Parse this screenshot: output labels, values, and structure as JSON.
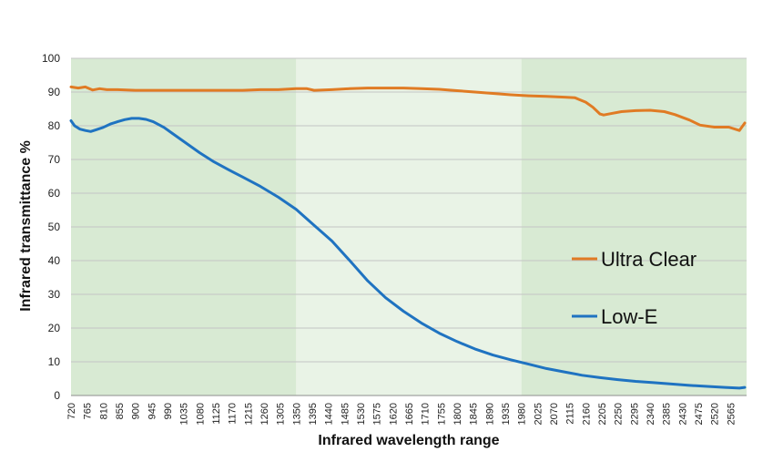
{
  "chart_data": {
    "type": "line",
    "xlabel": "Infrared wavelength range",
    "ylabel": "Infrared transmittance %",
    "xlim": [
      720,
      2610
    ],
    "ylim": [
      0,
      100
    ],
    "y_ticks": [
      0,
      10,
      20,
      30,
      40,
      50,
      60,
      70,
      80,
      90,
      100
    ],
    "x_ticks": [
      720,
      765,
      810,
      855,
      900,
      945,
      990,
      1035,
      1080,
      1125,
      1170,
      1215,
      1260,
      1305,
      1350,
      1395,
      1440,
      1485,
      1530,
      1575,
      1620,
      1665,
      1710,
      1755,
      1800,
      1845,
      1890,
      1935,
      1980,
      2025,
      2070,
      2115,
      2160,
      2205,
      2250,
      2295,
      2340,
      2385,
      2430,
      2475,
      2520,
      2565
    ],
    "bands": [
      {
        "from": 720,
        "to": 1350,
        "color": "#d8ead3"
      },
      {
        "from": 1350,
        "to": 1980,
        "color": "#e9f3e6"
      },
      {
        "from": 1980,
        "to": 2610,
        "color": "#d8ead3"
      }
    ],
    "grid": "horizontal",
    "legend_position": "right",
    "series": [
      {
        "name": "Ultra Clear",
        "color": "#e07b24",
        "x": [
          720,
          740,
          760,
          780,
          800,
          820,
          850,
          900,
          1000,
          1100,
          1200,
          1250,
          1300,
          1350,
          1380,
          1400,
          1450,
          1500,
          1550,
          1600,
          1650,
          1700,
          1750,
          1800,
          1850,
          1900,
          1950,
          2000,
          2050,
          2100,
          2130,
          2160,
          2180,
          2200,
          2210,
          2230,
          2260,
          2300,
          2340,
          2380,
          2410,
          2450,
          2480,
          2520,
          2560,
          2590,
          2605
        ],
        "y": [
          91.5,
          91.2,
          91.5,
          90.6,
          91.0,
          90.7,
          90.7,
          90.5,
          90.5,
          90.5,
          90.5,
          90.7,
          90.7,
          91.0,
          91.0,
          90.5,
          90.7,
          91.0,
          91.2,
          91.2,
          91.2,
          91.0,
          90.8,
          90.4,
          90.0,
          89.6,
          89.2,
          88.9,
          88.7,
          88.5,
          88.3,
          87.0,
          85.5,
          83.5,
          83.2,
          83.6,
          84.2,
          84.5,
          84.6,
          84.2,
          83.3,
          81.7,
          80.2,
          79.6,
          79.6,
          78.6,
          80.8
        ]
      },
      {
        "name": "Low-E",
        "color": "#1f73c1",
        "x": [
          720,
          730,
          745,
          760,
          775,
          790,
          810,
          830,
          850,
          870,
          890,
          910,
          930,
          950,
          980,
          1000,
          1040,
          1080,
          1120,
          1160,
          1200,
          1250,
          1300,
          1350,
          1400,
          1450,
          1500,
          1550,
          1600,
          1650,
          1700,
          1750,
          1800,
          1850,
          1900,
          1950,
          2000,
          2050,
          2100,
          2150,
          2200,
          2250,
          2300,
          2350,
          2400,
          2450,
          2500,
          2550,
          2590,
          2605
        ],
        "y": [
          81.5,
          80.0,
          79.0,
          78.6,
          78.3,
          78.8,
          79.5,
          80.5,
          81.2,
          81.8,
          82.2,
          82.2,
          81.9,
          81.2,
          79.5,
          78.0,
          75.0,
          72.0,
          69.3,
          67.0,
          64.8,
          62.0,
          58.8,
          55.2,
          50.5,
          45.8,
          40.0,
          34.0,
          29.0,
          25.0,
          21.5,
          18.5,
          16.0,
          13.8,
          12.0,
          10.6,
          9.3,
          8.0,
          7.0,
          6.0,
          5.3,
          4.7,
          4.2,
          3.8,
          3.4,
          3.0,
          2.7,
          2.4,
          2.2,
          2.4
        ]
      }
    ]
  }
}
